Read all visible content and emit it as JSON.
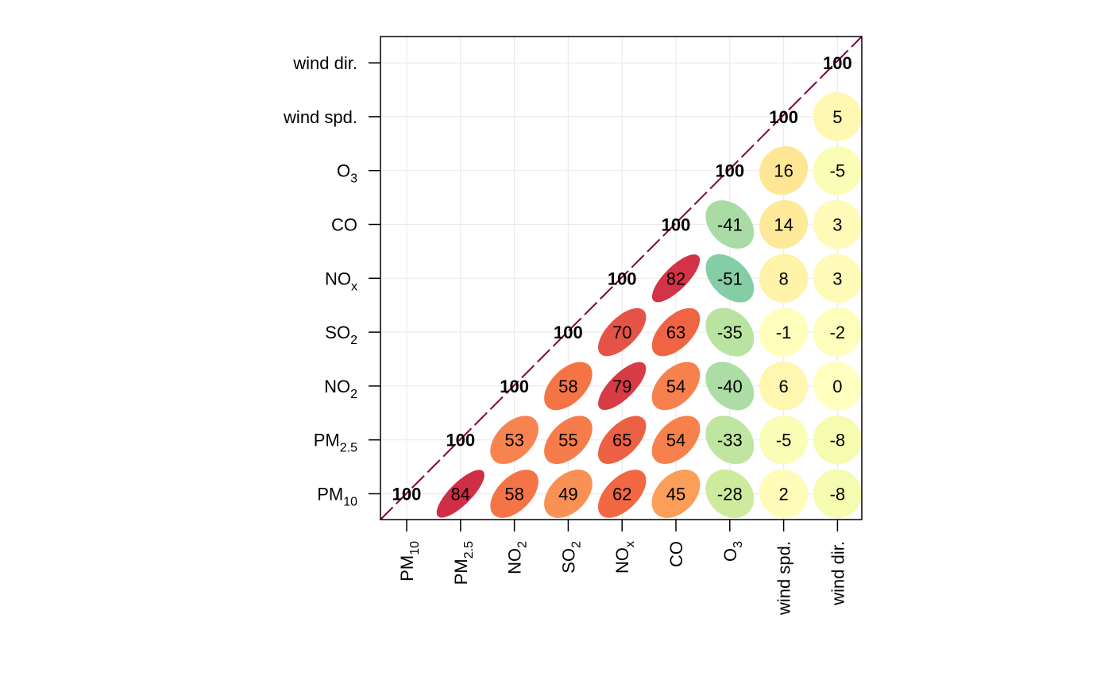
{
  "chart_data": {
    "type": "heatmap",
    "subtype": "correlation-ellipse",
    "variables": [
      {
        "label": "PM",
        "sub": "10"
      },
      {
        "label": "PM",
        "sub": "2.5"
      },
      {
        "label": "NO",
        "sub": "2"
      },
      {
        "label": "SO",
        "sub": "2"
      },
      {
        "label": "NO",
        "sub": "x"
      },
      {
        "label": "CO",
        "sub": ""
      },
      {
        "label": "O",
        "sub": "3"
      },
      {
        "label": "wind spd.",
        "sub": ""
      },
      {
        "label": "wind dir.",
        "sub": ""
      }
    ],
    "matrix_upper": [
      [
        100,
        84,
        58,
        49,
        62,
        45,
        -28,
        2,
        -8
      ],
      [
        null,
        100,
        53,
        55,
        65,
        54,
        -33,
        -5,
        -8
      ],
      [
        null,
        null,
        100,
        58,
        79,
        54,
        -40,
        6,
        0
      ],
      [
        null,
        null,
        null,
        100,
        70,
        63,
        -35,
        -1,
        -2
      ],
      [
        null,
        null,
        null,
        null,
        100,
        82,
        -51,
        8,
        3
      ],
      [
        null,
        null,
        null,
        null,
        null,
        100,
        -41,
        14,
        3
      ],
      [
        null,
        null,
        null,
        null,
        null,
        null,
        100,
        16,
        -5
      ],
      [
        null,
        null,
        null,
        null,
        null,
        null,
        null,
        100,
        5
      ],
      [
        null,
        null,
        null,
        null,
        null,
        null,
        null,
        null,
        100
      ]
    ],
    "value_range": [
      -100,
      100
    ],
    "colors": {
      "high_positive": "#C51B43",
      "positive": "#F46D43",
      "mid_positive": "#FDAE61",
      "zero": "#FFFFBF",
      "negative": "#ABDDA4",
      "strong_negative": "#66C2A5",
      "diagonal_line": "#800040"
    },
    "grid": true,
    "diagonal_dashed_line": true
  }
}
